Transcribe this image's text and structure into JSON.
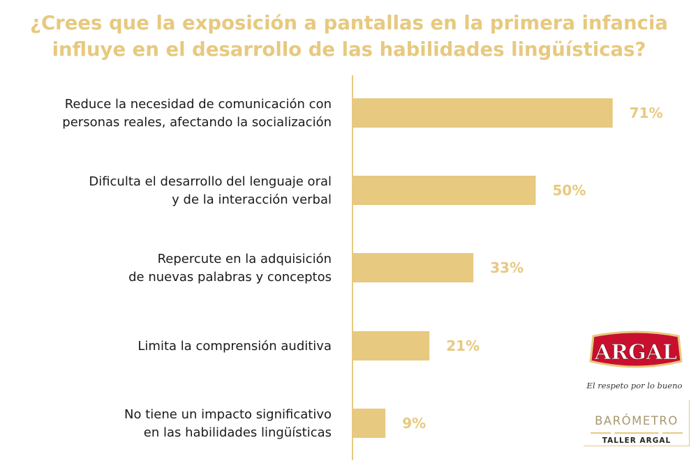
{
  "colors": {
    "accent": "#e7c97f",
    "bar": "#e7c97f",
    "text": "#1a1a1a",
    "logo_red": "#c8102e"
  },
  "chart_data": {
    "type": "bar",
    "orientation": "horizontal",
    "title_lines": [
      "¿Crees que la exposición a pantallas en la primera infancia",
      "influye en el desarrollo de las habilidades lingüísticas?"
    ],
    "categories": [
      [
        "Reduce la necesidad de comunicación con",
        "personas reales, afectando la socialización"
      ],
      [
        "Dificulta el desarrollo del lenguaje oral",
        "y de la interacción verbal"
      ],
      [
        "Repercute en la adquisición",
        "de nuevas palabras y conceptos"
      ],
      [
        "Limita la comprensión auditiva"
      ],
      [
        "No tiene un impacto significativo",
        "en las habilidades lingüísticas"
      ]
    ],
    "values": [
      71,
      50,
      33,
      21,
      9
    ],
    "value_labels": [
      "71%",
      "50%",
      "33%",
      "21%",
      "9%"
    ],
    "xlim": [
      0,
      100
    ],
    "grid": false,
    "legend": "none"
  },
  "branding": {
    "logo_text": "ARGAL",
    "tagline": "El respeto por lo bueno",
    "badge_title": "BARÓMETRO",
    "badge_subtitle": "TALLER ARGAL"
  }
}
